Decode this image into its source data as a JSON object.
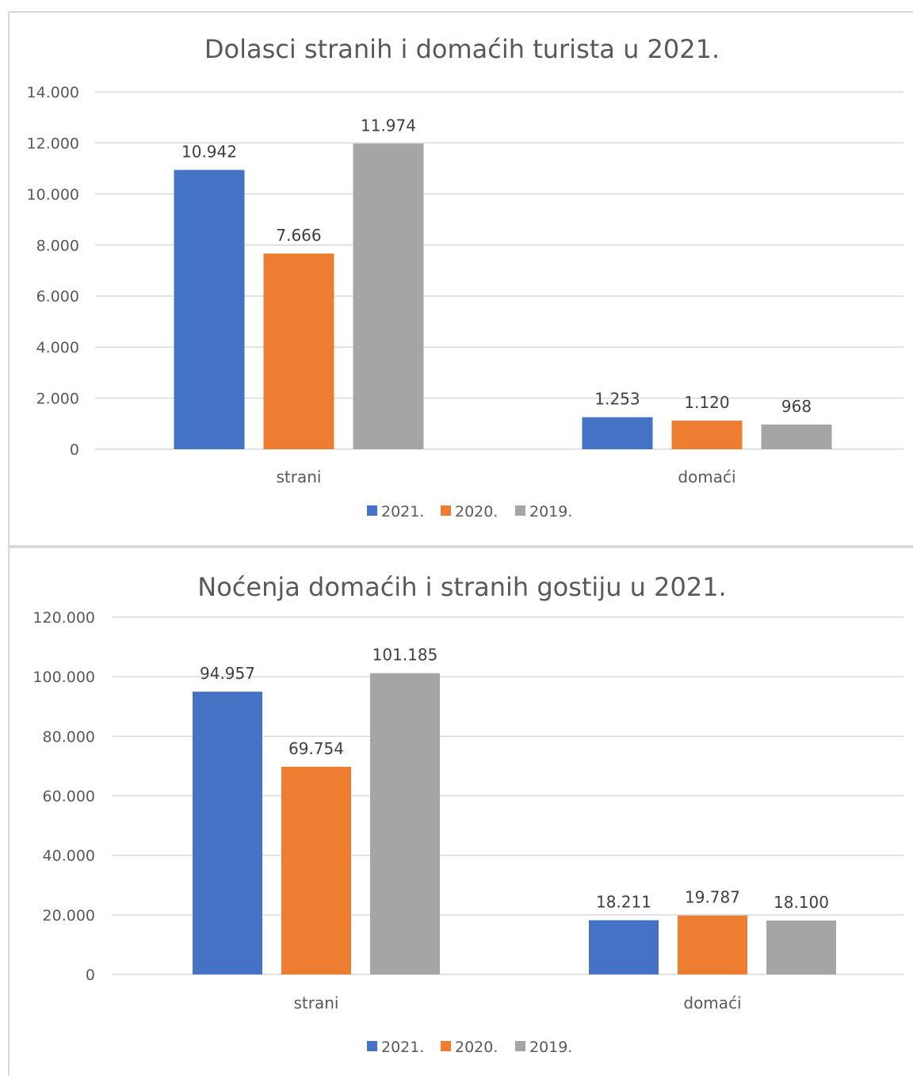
{
  "chart_data": [
    {
      "type": "bar",
      "title": "Dolasci stranih i domaćih turista u 2021.",
      "categories": [
        "strani",
        "domaći"
      ],
      "series": [
        {
          "name": "2021.",
          "values": [
            10942,
            1253
          ],
          "labels": [
            "10.942",
            "1.253"
          ]
        },
        {
          "name": "2020.",
          "values": [
            7666,
            1120
          ],
          "labels": [
            "7.666",
            "1.120"
          ]
        },
        {
          "name": "2019.",
          "values": [
            11974,
            968
          ],
          "labels": [
            "11.974",
            "968"
          ]
        }
      ],
      "ylim": [
        0,
        14000
      ],
      "yticks": [
        0,
        2000,
        4000,
        6000,
        8000,
        10000,
        12000,
        14000
      ],
      "ytick_labels": [
        "0",
        "2.000",
        "4.000",
        "6.000",
        "8.000",
        "10.000",
        "12.000",
        "14.000"
      ],
      "grid": true,
      "legend": "bottom",
      "xlabel": "",
      "ylabel": ""
    },
    {
      "type": "bar",
      "title": "Noćenja domaćih i stranih gostiju u 2021.",
      "categories": [
        "strani",
        "domaći"
      ],
      "series": [
        {
          "name": "2021.",
          "values": [
            94957,
            18211
          ],
          "labels": [
            "94.957",
            "18.211"
          ]
        },
        {
          "name": "2020.",
          "values": [
            69754,
            19787
          ],
          "labels": [
            "69.754",
            "19.787"
          ]
        },
        {
          "name": "2019.",
          "values": [
            101185,
            18100
          ],
          "labels": [
            "101.185",
            "18.100"
          ]
        }
      ],
      "ylim": [
        0,
        120000
      ],
      "yticks": [
        0,
        20000,
        40000,
        60000,
        80000,
        100000,
        120000
      ],
      "ytick_labels": [
        "0",
        "20.000",
        "40.000",
        "60.000",
        "80.000",
        "100.000",
        "120.000"
      ],
      "grid": true,
      "legend": "bottom",
      "xlabel": "",
      "ylabel": ""
    }
  ],
  "colors": {
    "series": [
      "#4472c4",
      "#ed7d31",
      "#a5a5a5"
    ]
  }
}
